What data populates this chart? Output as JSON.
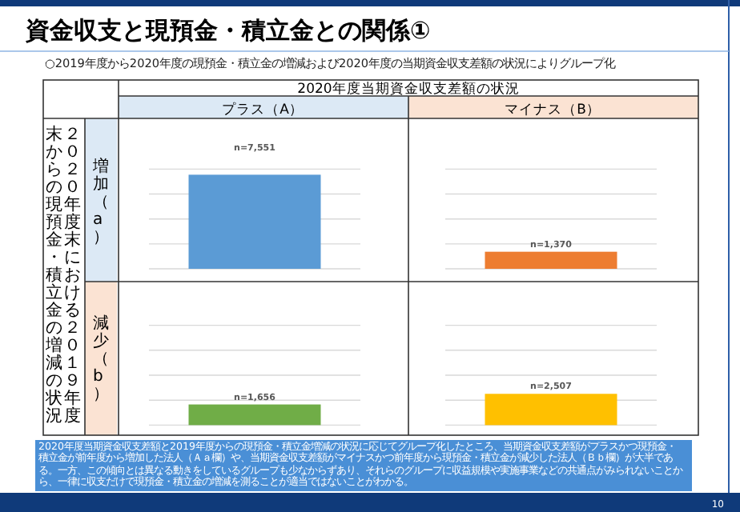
{
  "chart_data": [
    {
      "type": "other",
      "title": "資金収支と現預金・積立金との関係①",
      "subtitle": "○2019年度から2020年度の現預金・積立金の増減および2020年度の当期資金収支差額の状況によりグループ化",
      "annotations": [
        "2020年度当期資金収支差額の状況",
        "プラス（A）",
        "マイナス（B）",
        "２０２０年度末における２０１９年度末からの現預金・積立金の増減の状況",
        "増加（a）",
        "減少（b）",
        "2020年度当期資金収支差額と2019年度からの現預金・積立金増減の状況に応じてグループ化したところ、当期資金収支差額がプラスかつ現預金・積立金が前年度から増加した法人（Ａａ欄）や、当期資金収支差額がマイナスかつ前年度から現預金・積立金が減少した法人（Ｂｂ欄）が大半である。一方、この傾向とは異なる動きをしているグループも少なからずあり、それらのグループに収益規模や実施事業などの共通点がみられないことから、一律に収支だけで現預金・積立金の増減を測ることが適当ではないことがわかる。",
        "10"
      ]
    },
    {
      "type": "bar",
      "categories": [
        null
      ],
      "values": [
        7551
      ],
      "value_labels": [
        "n=7,551"
      ],
      "color": "#5b9bd5",
      "ylim": [
        0,
        8000
      ],
      "yticks": [
        {
          "value": 0,
          "label": null
        },
        {
          "value": 2000,
          "label": null
        },
        {
          "value": 4000,
          "label": null
        },
        {
          "value": 6000,
          "label": null
        },
        {
          "value": 8000,
          "label": null
        }
      ],
      "grid": "y"
    },
    {
      "type": "bar",
      "categories": [
        null
      ],
      "values": [
        1370
      ],
      "value_labels": [
        "n=1,370"
      ],
      "color": "#ed7d31",
      "ylim": [
        0,
        8000
      ],
      "yticks": [
        {
          "value": 0,
          "label": null
        },
        {
          "value": 2000,
          "label": null
        },
        {
          "value": 4000,
          "label": null
        },
        {
          "value": 6000,
          "label": null
        },
        {
          "value": 8000,
          "label": null
        }
      ],
      "grid": "y"
    },
    {
      "type": "bar",
      "categories": [
        null
      ],
      "values": [
        1656
      ],
      "value_labels": [
        "n=1,656"
      ],
      "color": "#70ad47",
      "ylim": [
        0,
        8000
      ],
      "yticks": [
        {
          "value": 0,
          "label": null
        },
        {
          "value": 2000,
          "label": null
        },
        {
          "value": 4000,
          "label": null
        },
        {
          "value": 6000,
          "label": null
        },
        {
          "value": 8000,
          "label": null
        }
      ],
      "grid": "y"
    },
    {
      "type": "bar",
      "categories": [
        null
      ],
      "values": [
        2507
      ],
      "value_labels": [
        "n=2,507"
      ],
      "color": "#ffc000",
      "ylim": [
        0,
        8000
      ],
      "yticks": [
        {
          "value": 0,
          "label": null
        },
        {
          "value": 2000,
          "label": null
        },
        {
          "value": 4000,
          "label": null
        },
        {
          "value": 6000,
          "label": null
        },
        {
          "value": 8000,
          "label": null
        }
      ],
      "grid": "y"
    }
  ]
}
